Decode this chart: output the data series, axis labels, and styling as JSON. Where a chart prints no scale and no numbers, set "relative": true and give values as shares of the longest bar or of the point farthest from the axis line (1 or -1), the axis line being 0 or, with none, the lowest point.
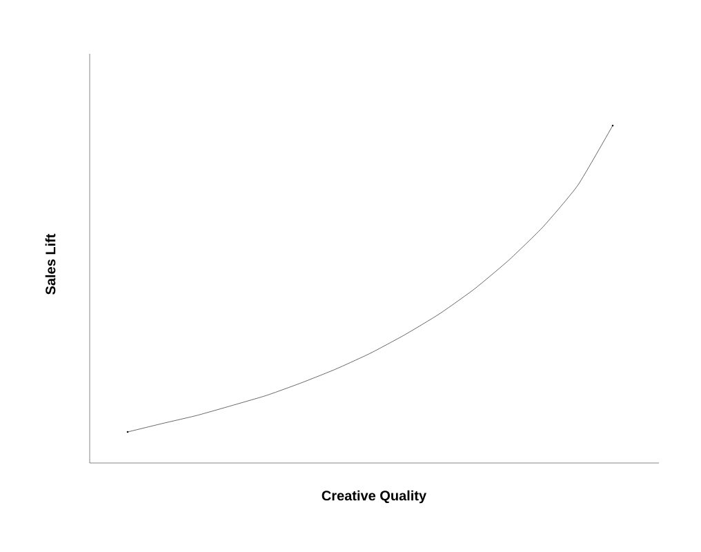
{
  "chart_data": {
    "type": "line",
    "relative": true,
    "xlabel": "Creative Quality",
    "ylabel": "Sales Lift",
    "categories": [
      null,
      null,
      null,
      null,
      null,
      null,
      null,
      null,
      null,
      null,
      null,
      null,
      null,
      null,
      null
    ],
    "series": [
      {
        "color": "#000000",
        "values": [
          0.092,
          0.117,
          0.141,
          0.17,
          0.2,
          0.237,
          0.278,
          0.325,
          0.38,
          0.442,
          0.515,
          0.601,
          0.701,
          0.824,
          1
        ]
      }
    ]
  }
}
